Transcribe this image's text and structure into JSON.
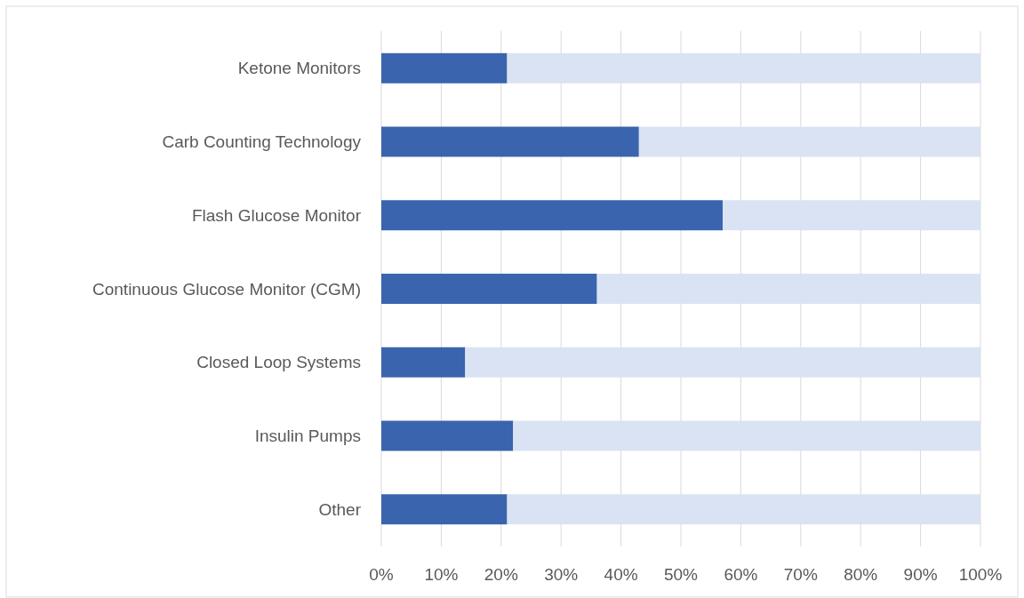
{
  "chart_data": {
    "type": "bar",
    "orientation": "horizontal",
    "stacked": true,
    "categories": [
      "Ketone Monitors",
      "Carb Counting Technology",
      "Flash Glucose Monitor",
      "Continuous Glucose Monitor (CGM)",
      "Closed Loop Systems",
      "Insulin Pumps",
      "Other"
    ],
    "series": [
      {
        "color": "#3a64ad",
        "values": [
          21,
          43,
          57,
          36,
          14,
          22,
          21
        ]
      },
      {
        "color": "#dae3f3",
        "values": [
          79,
          57,
          43,
          64,
          86,
          78,
          79
        ]
      }
    ],
    "xlim": [
      0,
      100
    ],
    "xticks": [
      {
        "value": 0,
        "label": "0%"
      },
      {
        "value": 10,
        "label": "10%"
      },
      {
        "value": 20,
        "label": "20%"
      },
      {
        "value": 30,
        "label": "30%"
      },
      {
        "value": 40,
        "label": "40%"
      },
      {
        "value": 50,
        "label": "50%"
      },
      {
        "value": 60,
        "label": "60%"
      },
      {
        "value": 70,
        "label": "70%"
      },
      {
        "value": 80,
        "label": "80%"
      },
      {
        "value": 90,
        "label": "90%"
      },
      {
        "value": 100,
        "label": "100%"
      }
    ],
    "grid": "x"
  }
}
